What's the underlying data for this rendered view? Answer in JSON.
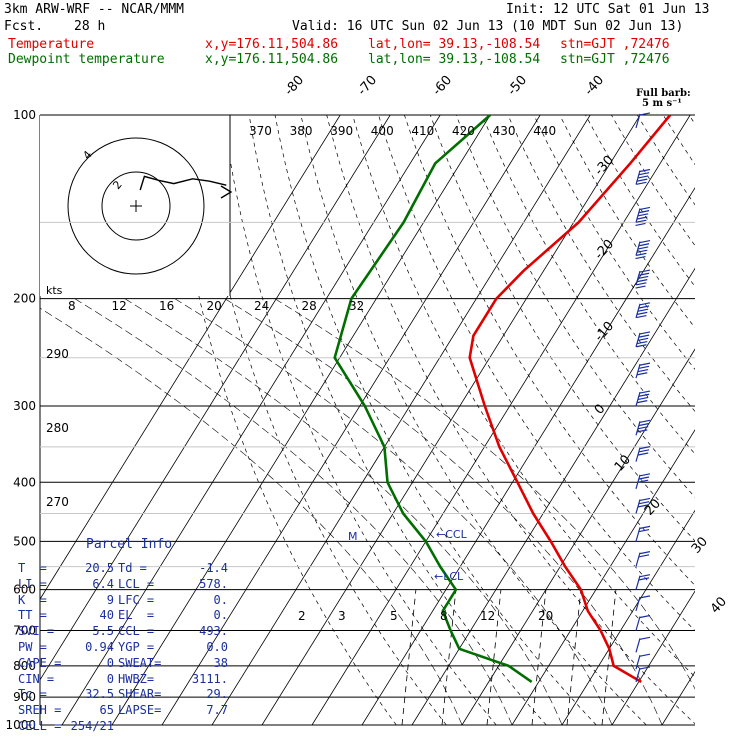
{
  "header": {
    "model": "3km ARW-WRF -- NCAR/MMM",
    "fcst_label": "Fcst.",
    "fcst_value": "28 h",
    "init": "Init: 12 UTC Sat 01 Jun 13",
    "valid": "Valid: 16 UTC Sun 02 Jun 13 (10 MDT Sun 02 Jun 13)",
    "temp_label": "Temperature",
    "dew_label": "Dewpoint temperature",
    "xy": "x,y=176.11,504.86",
    "latlon": "lat,lon= 39.13,-108.54",
    "stn": "stn=GJT ,72476",
    "barb_title": "Full barb:",
    "barb_unit": "5 m s⁻¹"
  },
  "parcel_info": {
    "title": "Parcel Info",
    "rows": [
      [
        "T  =",
        "20.5",
        "Td =",
        "-1.4"
      ],
      [
        "LI =",
        "6.4",
        "LCL =",
        "578."
      ],
      [
        "K  =",
        "9",
        "LFC =",
        "0."
      ],
      [
        "TT =",
        "40",
        "EL  =",
        "0."
      ],
      [
        "SVI =",
        "5.5",
        "CCL =",
        "493."
      ],
      [
        "PW =",
        "0.94",
        "YGP =",
        "0.0"
      ],
      [
        "CAPE =",
        "0",
        "SWEAT=",
        "38"
      ],
      [
        "CIN =",
        "0",
        "HWBZ=",
        "3111."
      ],
      [
        "Tc =",
        "32.5",
        "SHEAR=",
        "29."
      ],
      [
        "SREH =",
        "65",
        "LAPSE=",
        "7.7"
      ],
      [
        "CELL =",
        "254/21",
        "",
        ""
      ]
    ]
  },
  "hodograph": {
    "units": "kts",
    "ring_labels": [
      "2",
      "4"
    ]
  },
  "chart_data": {
    "type": "line",
    "title": "",
    "y_axis": {
      "label": "",
      "scale": "log",
      "ticks": [
        100,
        200,
        300,
        400,
        500,
        600,
        700,
        800,
        900,
        1000
      ],
      "range": [
        100,
        1000
      ]
    },
    "isotherm_labels": [
      "-80",
      "-70",
      "-60",
      "-50",
      "-40",
      "-30",
      "-20",
      "-10",
      "0",
      "10",
      "20",
      "30",
      "40"
    ],
    "theta_e_labels": [
      "370",
      "380",
      "390",
      "400",
      "410",
      "420",
      "430",
      "440"
    ],
    "mixing_ratio_labels": [
      "2",
      "3",
      "5",
      "8",
      "12",
      "20"
    ],
    "theta_labels": [
      "290",
      "280",
      "270"
    ],
    "hodo_speed_labels": [
      "8",
      "12",
      "16",
      "20",
      "24",
      "28",
      "32"
    ],
    "annotations": [
      "M",
      "CCL",
      "LCL"
    ],
    "series": [
      {
        "name": "Temperature",
        "color": "#e00000",
        "points": [
          [
            100,
            -44
          ],
          [
            120,
            -46
          ],
          [
            150,
            -49
          ],
          [
            180,
            -54
          ],
          [
            200,
            -56
          ],
          [
            230,
            -56
          ],
          [
            250,
            -54
          ],
          [
            300,
            -45
          ],
          [
            350,
            -37
          ],
          [
            400,
            -29
          ],
          [
            450,
            -22
          ],
          [
            500,
            -15
          ],
          [
            550,
            -9
          ],
          [
            600,
            -3
          ],
          [
            650,
            1
          ],
          [
            700,
            6
          ],
          [
            750,
            10
          ],
          [
            800,
            13
          ],
          [
            850,
            20.5
          ]
        ]
      },
      {
        "name": "Dewpoint temperature",
        "color": "#006e00",
        "points": [
          [
            100,
            -80
          ],
          [
            120,
            -85
          ],
          [
            150,
            -84
          ],
          [
            200,
            -85
          ],
          [
            250,
            -81
          ],
          [
            300,
            -69
          ],
          [
            350,
            -60
          ],
          [
            400,
            -55
          ],
          [
            450,
            -48
          ],
          [
            500,
            -40
          ],
          [
            550,
            -34
          ],
          [
            600,
            -28
          ],
          [
            650,
            -28
          ],
          [
            700,
            -24
          ],
          [
            750,
            -20
          ],
          [
            800,
            -8
          ],
          [
            850,
            -1.4
          ]
        ]
      }
    ],
    "wind_barbs": [
      {
        "p": 105,
        "dir": 250,
        "spd_ms": 5
      },
      {
        "p": 130,
        "dir": 250,
        "spd_ms": 25
      },
      {
        "p": 150,
        "dir": 250,
        "spd_ms": 30
      },
      {
        "p": 170,
        "dir": 250,
        "spd_ms": 30
      },
      {
        "p": 190,
        "dir": 250,
        "spd_ms": 30
      },
      {
        "p": 215,
        "dir": 250,
        "spd_ms": 25
      },
      {
        "p": 240,
        "dir": 250,
        "spd_ms": 25
      },
      {
        "p": 270,
        "dir": 250,
        "spd_ms": 20
      },
      {
        "p": 300,
        "dir": 250,
        "spd_ms": 20
      },
      {
        "p": 335,
        "dir": 250,
        "spd_ms": 20
      },
      {
        "p": 370,
        "dir": 250,
        "spd_ms": 15
      },
      {
        "p": 410,
        "dir": 250,
        "spd_ms": 15
      },
      {
        "p": 450,
        "dir": 250,
        "spd_ms": 15
      },
      {
        "p": 500,
        "dir": 250,
        "spd_ms": 10
      },
      {
        "p": 550,
        "dir": 250,
        "spd_ms": 10
      },
      {
        "p": 600,
        "dir": 250,
        "spd_ms": 10
      },
      {
        "p": 650,
        "dir": 250,
        "spd_ms": 5
      },
      {
        "p": 700,
        "dir": 250,
        "spd_ms": 5
      },
      {
        "p": 760,
        "dir": 250,
        "spd_ms": 5
      },
      {
        "p": 810,
        "dir": 250,
        "spd_ms": 5
      },
      {
        "p": 850,
        "dir": 250,
        "spd_ms": 5
      }
    ],
    "hodograph_points": [
      [
        0.2,
        -0.5
      ],
      [
        0.4,
        1.2
      ],
      [
        1.1,
        0.7
      ],
      [
        1.8,
        0.3
      ],
      [
        2.7,
        0.9
      ],
      [
        3.5,
        0.6
      ],
      [
        4.3,
        0.1
      ]
    ],
    "grid": true
  }
}
